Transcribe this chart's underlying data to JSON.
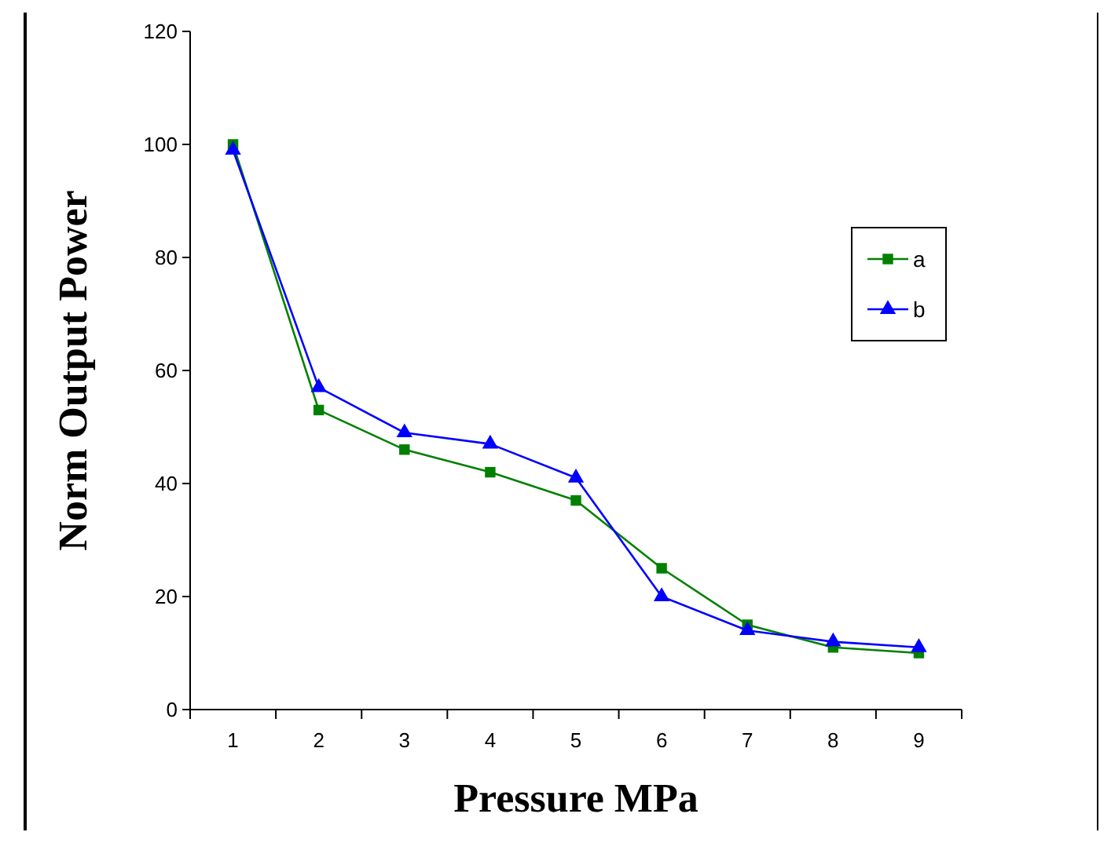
{
  "chart_data": {
    "type": "line",
    "xlabel": "Pressure MPa",
    "ylabel": "Norm Output Power",
    "categories": [
      "1",
      "2",
      "3",
      "4",
      "5",
      "6",
      "7",
      "8",
      "9"
    ],
    "series": [
      {
        "name": "a",
        "color": "#008000",
        "marker": "square",
        "values": [
          100,
          53,
          46,
          42,
          37,
          25,
          15,
          11,
          10
        ]
      },
      {
        "name": "b",
        "color": "#0000ff",
        "marker": "triangle",
        "values": [
          99,
          57,
          49,
          47,
          41,
          20,
          14,
          12,
          11
        ]
      }
    ],
    "ylim": [
      0,
      120
    ],
    "yticks": [
      0,
      20,
      40,
      60,
      80,
      100,
      120
    ],
    "grid": false,
    "legend": "right"
  }
}
